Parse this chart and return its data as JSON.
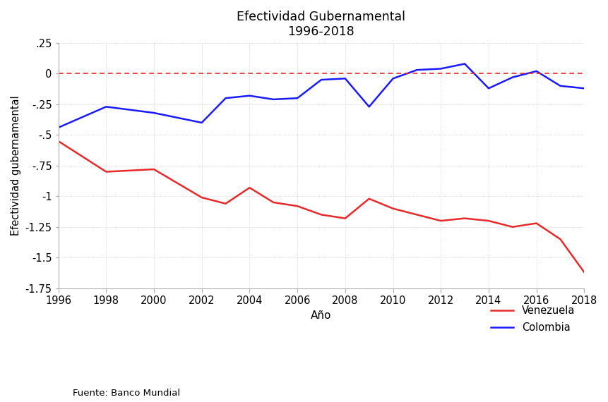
{
  "title_line1": "Efectividad Gubernamental",
  "title_line2": "1996-2018",
  "xlabel": "Año",
  "ylabel": "Efectividad gubernamental",
  "source_text": "Fuente: Banco Mundial",
  "years": [
    1996,
    1998,
    2000,
    2002,
    2003,
    2004,
    2005,
    2006,
    2007,
    2008,
    2009,
    2010,
    2011,
    2012,
    2013,
    2014,
    2015,
    2016,
    2017,
    2018
  ],
  "venezuela": [
    -0.55,
    -0.8,
    -0.78,
    -1.01,
    -1.06,
    -0.93,
    -1.05,
    -1.08,
    -1.15,
    -1.18,
    -1.02,
    -1.1,
    -1.15,
    -1.2,
    -1.18,
    -1.2,
    -1.25,
    -1.22,
    -1.35,
    -1.62
  ],
  "colombia": [
    -0.44,
    -0.27,
    -0.32,
    -0.4,
    -0.2,
    -0.18,
    -0.21,
    -0.2,
    -0.05,
    -0.04,
    -0.27,
    -0.04,
    0.03,
    0.04,
    0.08,
    -0.12,
    -0.03,
    0.02,
    -0.1,
    -0.12
  ],
  "venezuela_color": "#e8292a",
  "colombia_color": "#1a1aff",
  "hline_color": "#e8292a",
  "ylim": [
    -1.75,
    0.25
  ],
  "yticks": [
    0.25,
    0.0,
    -0.25,
    -0.5,
    -0.75,
    -1.0,
    -1.25,
    -1.5,
    -1.75
  ],
  "ytick_labels": [
    ".25",
    "0",
    "-.25",
    "-.5",
    "-.75",
    "-1",
    "-1.25",
    "-1.5",
    "-1.75"
  ],
  "xticks": [
    1996,
    1998,
    2000,
    2002,
    2004,
    2006,
    2008,
    2010,
    2012,
    2014,
    2016,
    2018
  ],
  "legend_venezuela": "Venezuela",
  "legend_colombia": "Colombia",
  "grid_color": "#c8c8c8",
  "bg_color": "#ffffff",
  "line_width": 1.8
}
